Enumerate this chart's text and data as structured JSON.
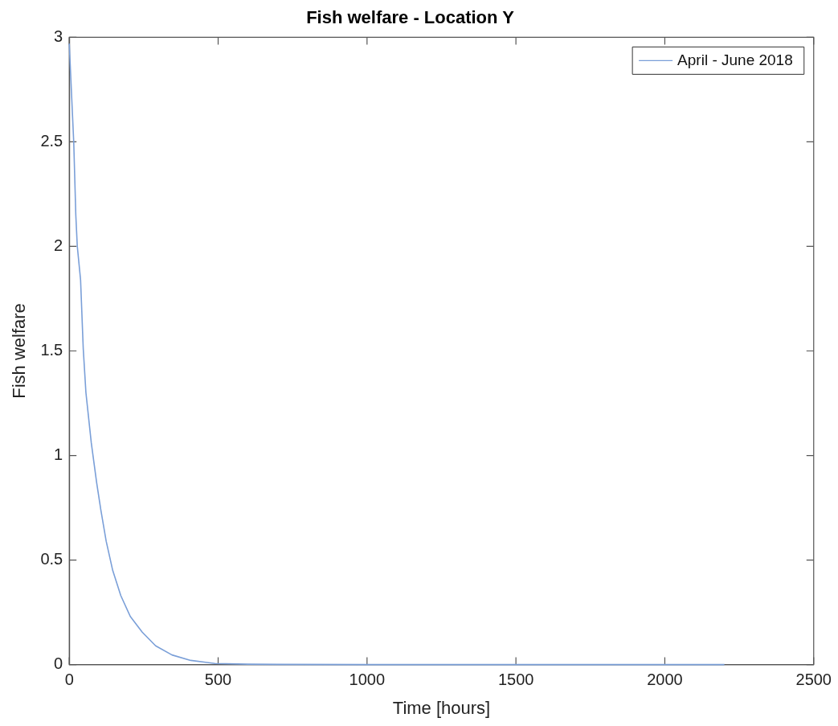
{
  "chart_data": {
    "type": "line",
    "title": "Fish welfare - Location Y",
    "xlabel": "Time [hours]",
    "ylabel": "Fish welfare",
    "xlim": [
      0,
      2500
    ],
    "xticks": [
      0,
      500,
      1000,
      1500,
      2000,
      2500
    ],
    "ylim": [
      0,
      3
    ],
    "yticks": [
      0,
      0.5,
      1,
      1.5,
      2,
      2.5,
      3
    ],
    "grid": false,
    "legend": "top right",
    "marker": "none",
    "line_style": "solid",
    "series": [
      {
        "name": "April - June 2018",
        "color": "#7a9fd8",
        "x": [
          0,
          15,
          22,
          27,
          38,
          47,
          56,
          74,
          92,
          106,
          124,
          146,
          173,
          205,
          245,
          290,
          345,
          408,
          489,
          600,
          700,
          1000,
          1500,
          2200
        ],
        "values": [
          2.97,
          2.5,
          2.15,
          2.0,
          1.84,
          1.51,
          1.3,
          1.06,
          0.87,
          0.74,
          0.59,
          0.45,
          0.33,
          0.23,
          0.155,
          0.09,
          0.046,
          0.02,
          0.005,
          0.002,
          0.001,
          0,
          0,
          0
        ]
      }
    ]
  }
}
